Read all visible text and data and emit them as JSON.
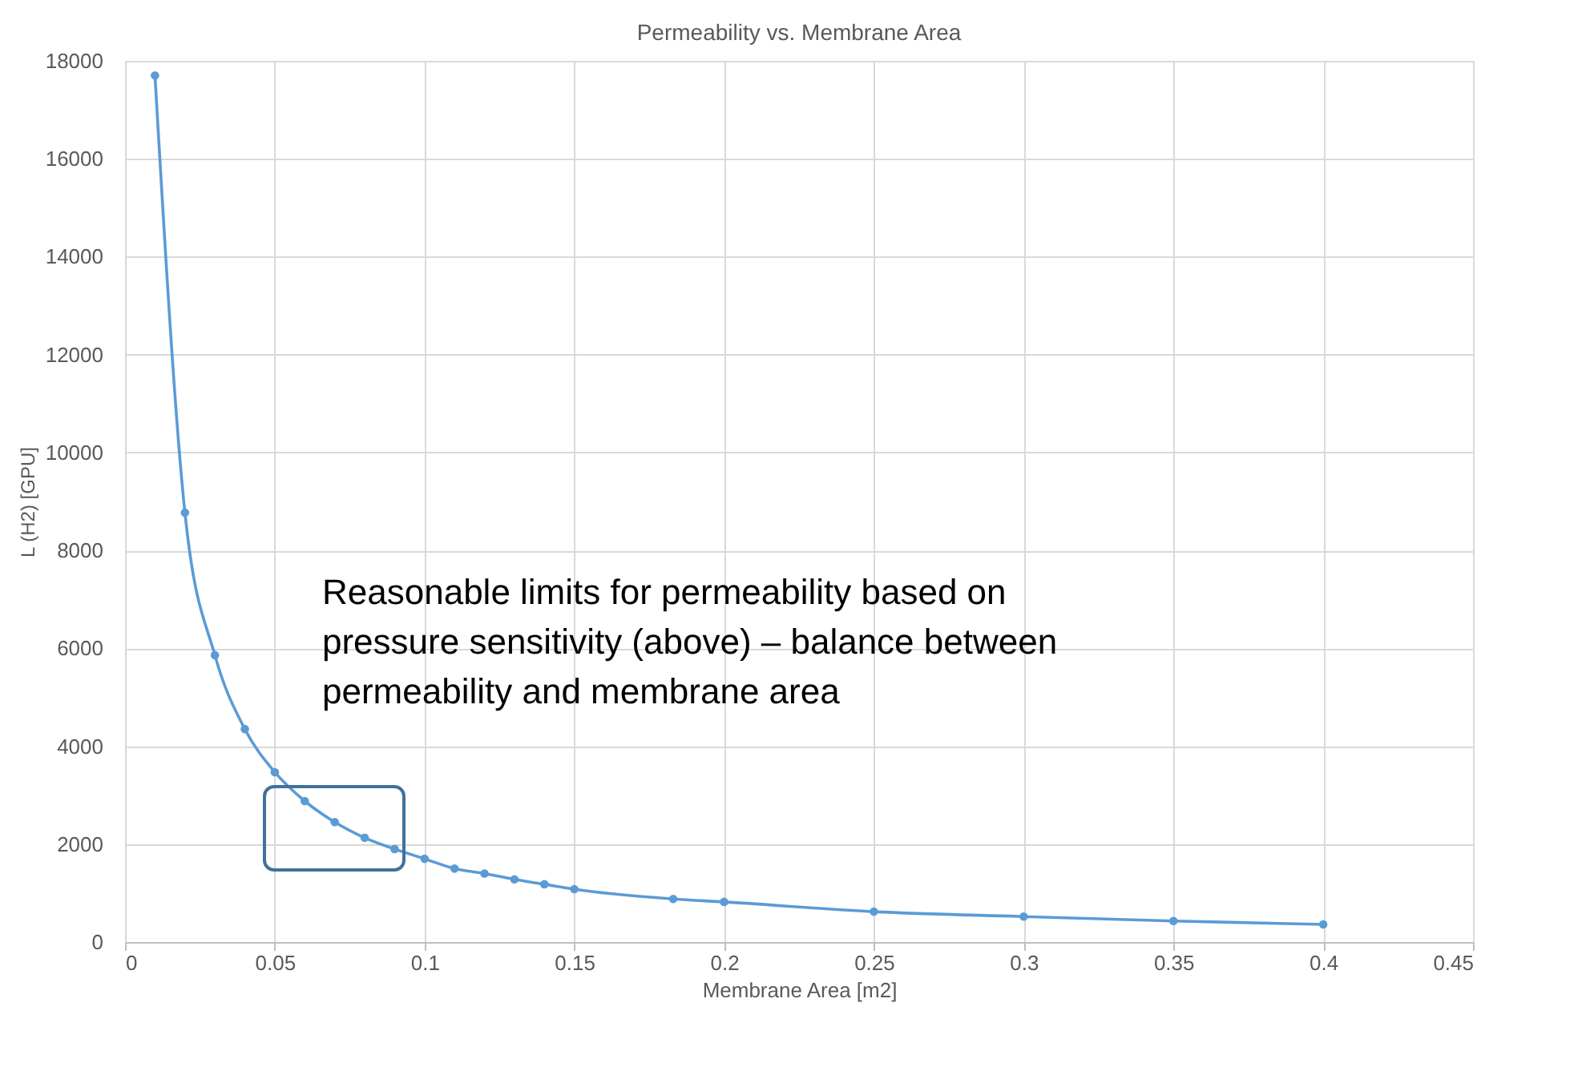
{
  "chart_data": {
    "type": "line",
    "title": "Permeability vs. Membrane Area",
    "xlabel": "Membrane Area [m2]",
    "ylabel": "L (H2) [GPU]",
    "x": [
      0.01,
      0.02,
      0.03,
      0.04,
      0.05,
      0.06,
      0.07,
      0.08,
      0.09,
      0.1,
      0.11,
      0.12,
      0.13,
      0.14,
      0.15,
      0.183,
      0.2,
      0.25,
      0.3,
      0.35,
      0.4
    ],
    "series": [
      {
        "color": "#5b9bd5",
        "values": [
          17700,
          8770,
          5860,
          4350,
          3470,
          2880,
          2450,
          2130,
          1900,
          1700,
          1500,
          1400,
          1280,
          1180,
          1080,
          880,
          820,
          620,
          520,
          430,
          360
        ]
      }
    ],
    "xlim": [
      0,
      0.45
    ],
    "xticks": [
      0,
      0.05,
      0.1,
      0.15,
      0.2,
      0.25,
      0.3,
      0.35,
      0.4,
      0.45
    ],
    "ylim": [
      0,
      18000
    ],
    "yticks": [
      0,
      2000,
      4000,
      6000,
      8000,
      10000,
      12000,
      14000,
      16000,
      18000
    ],
    "grid": true,
    "marker": "circle",
    "line_style": "solid",
    "annotations": [
      "Reasonable limits for permeability based on pressure sensitivity (above) – balance between permeability and membrane area"
    ]
  }
}
